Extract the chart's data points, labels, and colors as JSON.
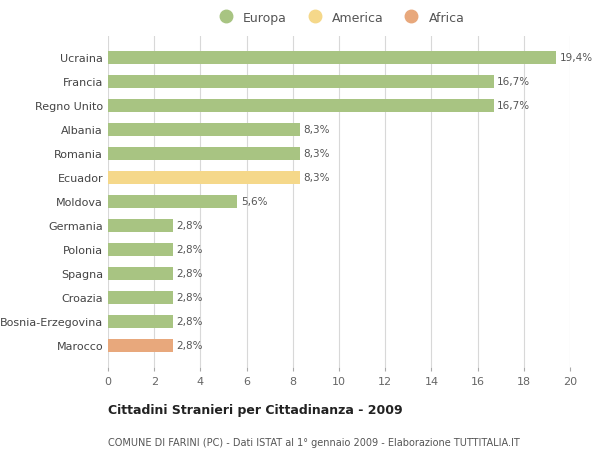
{
  "categories": [
    "Marocco",
    "Bosnia-Erzegovina",
    "Croazia",
    "Spagna",
    "Polonia",
    "Germania",
    "Moldova",
    "Ecuador",
    "Romania",
    "Albania",
    "Regno Unito",
    "Francia",
    "Ucraina"
  ],
  "values": [
    2.8,
    2.8,
    2.8,
    2.8,
    2.8,
    2.8,
    5.6,
    8.3,
    8.3,
    8.3,
    16.7,
    16.7,
    19.4
  ],
  "labels": [
    "2,8%",
    "2,8%",
    "2,8%",
    "2,8%",
    "2,8%",
    "2,8%",
    "5,6%",
    "8,3%",
    "8,3%",
    "8,3%",
    "16,7%",
    "16,7%",
    "19,4%"
  ],
  "bar_colors": [
    "#e8a87c",
    "#a8c482",
    "#a8c482",
    "#a8c482",
    "#a8c482",
    "#a8c482",
    "#a8c482",
    "#f5d88a",
    "#a8c482",
    "#a8c482",
    "#a8c482",
    "#a8c482",
    "#a8c482"
  ],
  "europa_color": "#a8c482",
  "america_color": "#f5d88a",
  "africa_color": "#e8a87c",
  "legend_labels": [
    "Europa",
    "America",
    "Africa"
  ],
  "title1": "Cittadini Stranieri per Cittadinanza - 2009",
  "title2": "COMUNE DI FARINI (PC) - Dati ISTAT al 1° gennaio 2009 - Elaborazione TUTTITALIA.IT",
  "xlim": [
    0,
    20
  ],
  "xticks": [
    0,
    2,
    4,
    6,
    8,
    10,
    12,
    14,
    16,
    18,
    20
  ],
  "background_color": "#ffffff",
  "grid_color": "#d8d8d8",
  "bar_height": 0.55
}
